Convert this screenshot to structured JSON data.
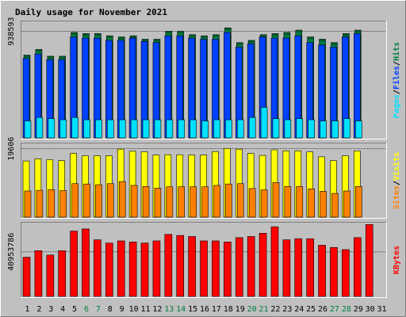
{
  "chart_data": {
    "type": "bar",
    "title": "Daily usage for November 2021",
    "colors": {
      "hits": "#008040",
      "files": "#0040ff",
      "pages": "#00e0ff",
      "visits": "#ffff00",
      "sites": "#ff8000",
      "kbytes": "#ff0000",
      "title": "#0000c0",
      "weekend": "#008040",
      "weekday": "#000000",
      "panel_bg": "#c0c0c0",
      "frame": "#808080"
    },
    "x": [
      "1",
      "2",
      "3",
      "4",
      "5",
      "6",
      "7",
      "8",
      "9",
      "10",
      "11",
      "12",
      "13",
      "14",
      "15",
      "16",
      "17",
      "18",
      "19",
      "20",
      "21",
      "22",
      "23",
      "24",
      "25",
      "26",
      "27",
      "28",
      "29",
      "30",
      "31"
    ],
    "weekend_days": [
      6,
      7,
      13,
      14,
      20,
      21,
      27,
      28
    ],
    "panels": [
      {
        "id": "hits-panel",
        "ytick_label": "938593",
        "ytick_value": 938593,
        "ylim": [
          0,
          1020000
        ],
        "legend": [
          {
            "text": "Hits",
            "color_key": "hits"
          },
          {
            "text": "Files",
            "color_key": "files"
          },
          {
            "text": "Pages",
            "color_key": "pages"
          }
        ],
        "series": [
          {
            "name": "Hits",
            "color_key": "hits",
            "values": [
              730000,
              780000,
              720000,
              720000,
              930000,
              920000,
              920000,
              900000,
              890000,
              900000,
              870000,
              870000,
              940000,
              940000,
              910000,
              900000,
              910000,
              970000,
              840000,
              860000,
              910000,
              920000,
              930000,
              950000,
              890000,
              870000,
              840000,
              920000,
              950000,
              0,
              0
            ]
          },
          {
            "name": "Files",
            "color_key": "files",
            "values": [
              700000,
              740000,
              690000,
              690000,
              890000,
              880000,
              880000,
              860000,
              860000,
              880000,
              850000,
              840000,
              900000,
              900000,
              880000,
              870000,
              870000,
              930000,
              800000,
              830000,
              890000,
              880000,
              880000,
              900000,
              840000,
              820000,
              800000,
              890000,
              920000,
              0,
              0
            ]
          },
          {
            "name": "Pages",
            "color_key": "pages",
            "values": [
              150000,
              180000,
              170000,
              160000,
              180000,
              160000,
              160000,
              160000,
              160000,
              160000,
              160000,
              160000,
              160000,
              160000,
              160000,
              150000,
              160000,
              160000,
              160000,
              180000,
              270000,
              170000,
              160000,
              170000,
              160000,
              150000,
              150000,
              170000,
              150000,
              0,
              0
            ]
          }
        ]
      },
      {
        "id": "visits-panel",
        "ytick_label": "19606",
        "ytick_value": 19606,
        "ylim": [
          0,
          20900
        ],
        "legend": [
          {
            "text": "Visits",
            "color_key": "visits"
          },
          {
            "text": "Sites",
            "color_key": "sites"
          }
        ],
        "series": [
          {
            "name": "Visits",
            "color_key": "visits",
            "values": [
              16100,
              16700,
              16500,
              16200,
              18300,
              17600,
              17600,
              17600,
              19500,
              18900,
              18700,
              17800,
              17900,
              17900,
              17800,
              17800,
              18800,
              19700,
              19500,
              18300,
              17700,
              19300,
              19000,
              19000,
              18700,
              17300,
              16200,
              17600,
              19000,
              0,
              0
            ]
          },
          {
            "name": "Sites",
            "color_key": "sites",
            "values": [
              7500,
              7700,
              7900,
              7600,
              9600,
              9500,
              9300,
              9600,
              10200,
              9100,
              8800,
              8300,
              8700,
              8700,
              8700,
              8700,
              9100,
              9500,
              9600,
              8200,
              7800,
              9900,
              8800,
              8800,
              8100,
              7400,
              6800,
              7500,
              8800,
              0,
              0
            ]
          }
        ]
      },
      {
        "id": "kbytes-panel",
        "ytick_label": "40953786",
        "ytick_value": 40953786,
        "ylim": [
          0,
          67000000
        ],
        "legend": [
          {
            "text": "KBytes",
            "color_key": "kbytes"
          }
        ],
        "series": [
          {
            "name": "KBytes",
            "color_key": "kbytes",
            "values": [
              36000000,
              42000000,
              38000000,
              42000000,
              60000000,
              62000000,
              52000000,
              49000000,
              51000000,
              50000000,
              49000000,
              51000000,
              57000000,
              56000000,
              55000000,
              51000000,
              51000000,
              50000000,
              54000000,
              55000000,
              58000000,
              64000000,
              52000000,
              53000000,
              53000000,
              47000000,
              45000000,
              43000000,
              54000000,
              66000000,
              0
            ]
          }
        ]
      }
    ]
  }
}
